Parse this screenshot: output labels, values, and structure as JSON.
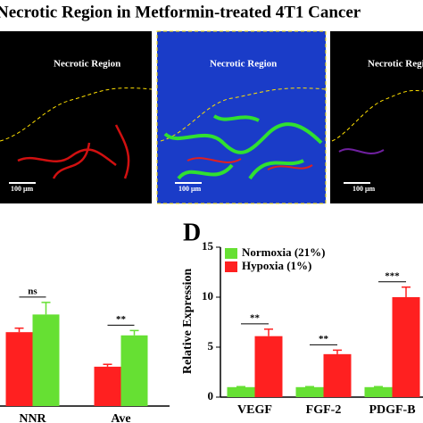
{
  "panel_title": "Necrotic Region in Metformin-treated 4T1 Cancer",
  "images": [
    {
      "label": "Necrotic Region",
      "scale": "100 μm"
    },
    {
      "label": "Necrotic Region",
      "scale": "100 μm"
    },
    {
      "label": "Necrotic Regio",
      "scale": "100 μm"
    }
  ],
  "chart_data": [
    {
      "type": "bar",
      "categories": [
        "NNR",
        "Ave"
      ],
      "ylim": [
        0,
        1.5
      ],
      "series": [
        {
          "name": null,
          "color": "#ff2020",
          "values": [
            0.92,
            0.49
          ],
          "errors": [
            0.05,
            0.03
          ]
        },
        {
          "name": null,
          "color": "#66e033",
          "values": [
            1.14,
            0.88
          ],
          "errors": [
            0.15,
            0.06
          ]
        }
      ],
      "significance": [
        "ns",
        "**"
      ]
    },
    {
      "type": "bar",
      "panel_label": "D",
      "ylabel": "Relative Expression",
      "categories": [
        "VEGF",
        "FGF-2",
        "PDGF-B"
      ],
      "ylim": [
        0,
        15
      ],
      "yticks": [
        0,
        5,
        10,
        15
      ],
      "legend": "upper-left",
      "series": [
        {
          "name": "Normoxia (21%)",
          "color": "#66e033",
          "values": [
            1,
            1,
            1
          ],
          "errors": [
            0.05,
            0.05,
            0.05
          ]
        },
        {
          "name": "Hypoxia (1%)",
          "color": "#ff2020",
          "values": [
            6.1,
            4.3,
            10.0
          ],
          "errors": [
            0.7,
            0.4,
            1.0
          ]
        }
      ],
      "significance": [
        "**",
        "**",
        "***"
      ]
    }
  ]
}
